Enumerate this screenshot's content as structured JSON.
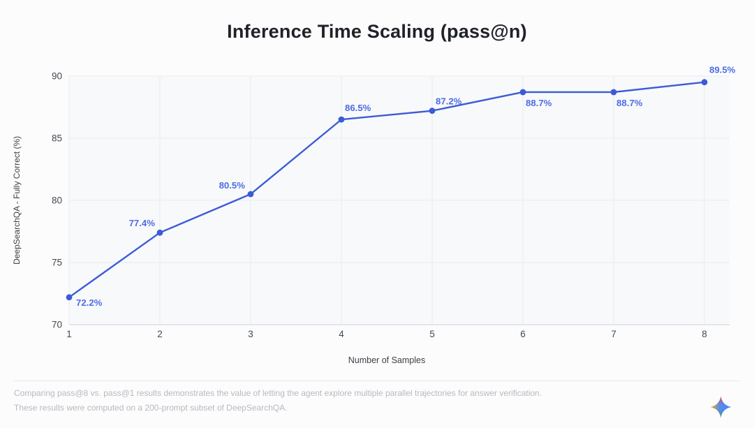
{
  "title": "Inference Time Scaling (pass@n)",
  "chart_data": {
    "type": "line",
    "title": "Inference Time Scaling (pass@n)",
    "x": [
      1,
      2,
      3,
      4,
      5,
      6,
      7,
      8
    ],
    "series": [
      {
        "name": "pass@n",
        "values": [
          72.2,
          77.4,
          80.5,
          86.5,
          87.2,
          88.7,
          88.7,
          89.5
        ],
        "point_labels": [
          "72.2%",
          "77.4%",
          "80.5%",
          "86.5%",
          "87.2%",
          "88.7%",
          "88.7%",
          "89.5%"
        ]
      }
    ],
    "xlabel": "Number of Samples",
    "ylabel": "DeepSearchQA - Fully Correct (%)",
    "xlim": [
      1,
      8
    ],
    "ylim": [
      70,
      90
    ],
    "x_ticks": [
      "1",
      "2",
      "3",
      "4",
      "5",
      "6",
      "7",
      "8"
    ],
    "y_ticks": [
      "70",
      "75",
      "80",
      "85",
      "90"
    ],
    "grid": true,
    "legend_position": "none"
  },
  "colors": {
    "line": "#3b5cd6",
    "point_label": "#4d6de3",
    "plot_background": "#f8f9fb",
    "gridline": "#e9ebef",
    "axis_line": "#dcdee3",
    "tick_label": "#45484e",
    "axis_title": "#3c4043",
    "title_text": "#1f2227",
    "caption_text": "#b6b9bf"
  },
  "caption": {
    "line1": "Comparing pass@8 vs. pass@1 results demonstrates the value of letting the agent explore multiple parallel trajectories for answer verification.",
    "line2": "These results were computed on a 200-prompt subset of DeepSearchQA."
  },
  "footer": {
    "icon": "gemini-sparkle-icon"
  }
}
